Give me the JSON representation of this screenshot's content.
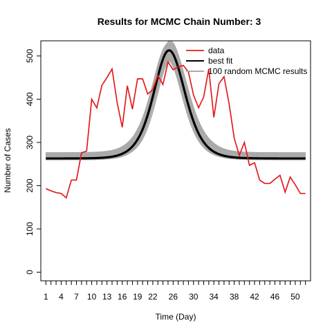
{
  "chart_data": {
    "type": "line",
    "title": "Results for MCMC Chain Number: 3",
    "xlabel": "Time (Day)",
    "ylabel": "Number of Cases",
    "xlim": [
      0,
      53
    ],
    "ylim": [
      -20,
      535
    ],
    "x_ticks": [
      1,
      2,
      3,
      4,
      5,
      6,
      7,
      8,
      9,
      10,
      11,
      12,
      13,
      14,
      15,
      16,
      17,
      18,
      19,
      20,
      21,
      22,
      23,
      24,
      25,
      26,
      27,
      28,
      29,
      30,
      31,
      32,
      33,
      34,
      35,
      36,
      37,
      38,
      39,
      40,
      41,
      42,
      43,
      44,
      45,
      46,
      47,
      48,
      49,
      50,
      51,
      52
    ],
    "x_tick_labels": [
      {
        "x": 1,
        "label": "1"
      },
      {
        "x": 4,
        "label": "4"
      },
      {
        "x": 7,
        "label": "7"
      },
      {
        "x": 10,
        "label": "10"
      },
      {
        "x": 13,
        "label": "13"
      },
      {
        "x": 16,
        "label": "16"
      },
      {
        "x": 19,
        "label": "19"
      },
      {
        "x": 22,
        "label": "22"
      },
      {
        "x": 26,
        "label": "26"
      },
      {
        "x": 30,
        "label": "30"
      },
      {
        "x": 34,
        "label": "34"
      },
      {
        "x": 38,
        "label": "38"
      },
      {
        "x": 42,
        "label": "42"
      },
      {
        "x": 46,
        "label": "46"
      },
      {
        "x": 50,
        "label": "50"
      }
    ],
    "y_ticks": [
      {
        "y": 0,
        "label": "0"
      },
      {
        "y": 100,
        "label": "100"
      },
      {
        "y": 200,
        "label": "200"
      },
      {
        "y": 300,
        "label": "300"
      },
      {
        "y": 400,
        "label": "400"
      },
      {
        "y": 500,
        "label": "500"
      }
    ],
    "grid": false,
    "legend_position": "top-right",
    "series": [
      {
        "name": "data",
        "color": "#e41a1c",
        "x": [
          1,
          2,
          3,
          4,
          5,
          6,
          7,
          8,
          9,
          10,
          11,
          12,
          13,
          14,
          15,
          16,
          17,
          18,
          19,
          20,
          21,
          22,
          23,
          24,
          25,
          26,
          27,
          28,
          29,
          30,
          31,
          32,
          33,
          34,
          35,
          36,
          37,
          38,
          39,
          40,
          41,
          42,
          43,
          44,
          45,
          46,
          47,
          48,
          49,
          50,
          51,
          52
        ],
        "values": [
          193,
          188,
          184,
          182,
          172,
          213,
          213,
          276,
          280,
          400,
          380,
          432,
          450,
          470,
          392,
          335,
          431,
          377,
          447,
          447,
          412,
          422,
          455,
          434,
          486,
          468,
          475,
          478,
          463,
          410,
          380,
          405,
          470,
          358,
          436,
          452,
          389,
          310,
          270,
          300,
          247,
          253,
          213,
          205,
          205,
          215,
          224,
          185,
          220,
          202,
          182,
          182
        ]
      },
      {
        "name": "best fit",
        "color": "#000000",
        "model": {
          "baseline": 263,
          "amplitude": 250,
          "peak_day": 25.2,
          "growth_rate": 0.245,
          "decay_rate": 0.235
        }
      },
      {
        "name": "100 random MCMC results",
        "color": "#aaaaaa",
        "band": {
          "baseline_range": [
            260,
            276
          ],
          "amplitude_range": [
            225,
            262
          ]
        }
      }
    ]
  }
}
